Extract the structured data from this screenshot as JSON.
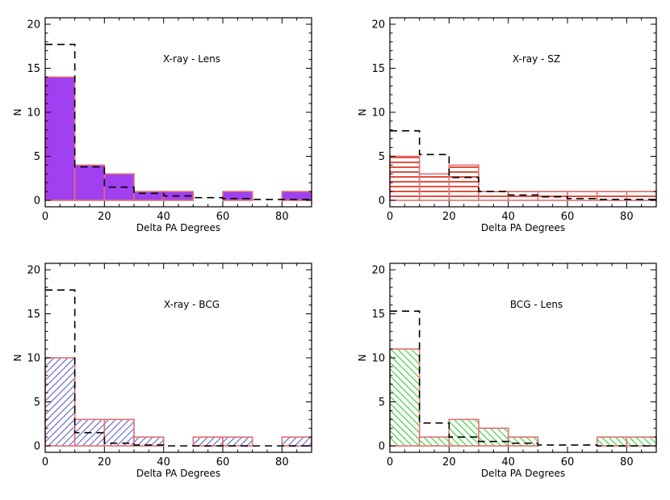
{
  "chart_data": [
    {
      "type": "bar",
      "annotation": "X-ray - Lens",
      "xlabel": "Delta PA Degrees",
      "ylabel": "N",
      "xlim": [
        0,
        90
      ],
      "ylim": [
        0,
        20
      ],
      "xticks": [
        0,
        20,
        40,
        60,
        80
      ],
      "yticks": [
        0,
        5,
        10,
        15,
        20
      ],
      "bin_edges": [
        0,
        10,
        20,
        30,
        40,
        50,
        60,
        70,
        80,
        90
      ],
      "values": [
        14,
        4,
        3,
        1,
        1,
        0,
        1,
        0,
        1
      ],
      "expected": [
        17.7,
        3.8,
        1.5,
        0.8,
        0.5,
        0.3,
        0.2,
        0.1,
        0.1
      ],
      "fill": "solid",
      "fill_color": "#a040f0",
      "edge_color": "#e07070"
    },
    {
      "type": "bar",
      "annotation": "X-ray - SZ",
      "xlabel": "Delta PA Degrees",
      "ylabel": "N",
      "xlim": [
        0,
        90
      ],
      "ylim": [
        0,
        20
      ],
      "xticks": [
        0,
        20,
        40,
        60,
        80
      ],
      "yticks": [
        0,
        5,
        10,
        15,
        20
      ],
      "bin_edges": [
        0,
        10,
        20,
        30,
        40,
        50,
        60,
        70,
        80,
        90
      ],
      "values": [
        5,
        3,
        4,
        1,
        1,
        1,
        1,
        1,
        1
      ],
      "expected": [
        7.9,
        5.2,
        2.6,
        1.0,
        0.6,
        0.4,
        0.2,
        0.1,
        0.1
      ],
      "fill": "horizontal-hatch",
      "fill_color": "#e05040",
      "edge_color": "#e07070"
    },
    {
      "type": "bar",
      "annotation": "X-ray - BCG",
      "xlabel": "Delta PA Degrees",
      "ylabel": "N",
      "xlim": [
        0,
        90
      ],
      "ylim": [
        0,
        20
      ],
      "xticks": [
        0,
        20,
        40,
        60,
        80
      ],
      "yticks": [
        0,
        5,
        10,
        15,
        20
      ],
      "bin_edges": [
        0,
        10,
        20,
        30,
        40,
        50,
        60,
        70,
        80,
        90
      ],
      "values": [
        10,
        3,
        3,
        1,
        0,
        1,
        1,
        0,
        1
      ],
      "expected": [
        17.7,
        1.5,
        0.3,
        0.1,
        0.0,
        0.0,
        0.0,
        0.0,
        0.0
      ],
      "fill": "diagonal-hatch",
      "fill_color": "#6060c8",
      "edge_color": "#e07070"
    },
    {
      "type": "bar",
      "annotation": "BCG - Lens",
      "xlabel": "Delta PA Degrees",
      "ylabel": "N",
      "xlim": [
        0,
        90
      ],
      "ylim": [
        0,
        20
      ],
      "xticks": [
        0,
        20,
        40,
        60,
        80
      ],
      "yticks": [
        0,
        5,
        10,
        15,
        20
      ],
      "bin_edges": [
        0,
        10,
        20,
        30,
        40,
        50,
        60,
        70,
        80,
        90
      ],
      "values": [
        11,
        1,
        3,
        2,
        1,
        0,
        0,
        1,
        1
      ],
      "expected": [
        15.3,
        2.6,
        1.0,
        0.5,
        0.3,
        0.1,
        0.1,
        0.0,
        0.0
      ],
      "fill": "diagonal-hatch",
      "fill_color": "#30d030",
      "edge_color": "#e07070"
    }
  ]
}
